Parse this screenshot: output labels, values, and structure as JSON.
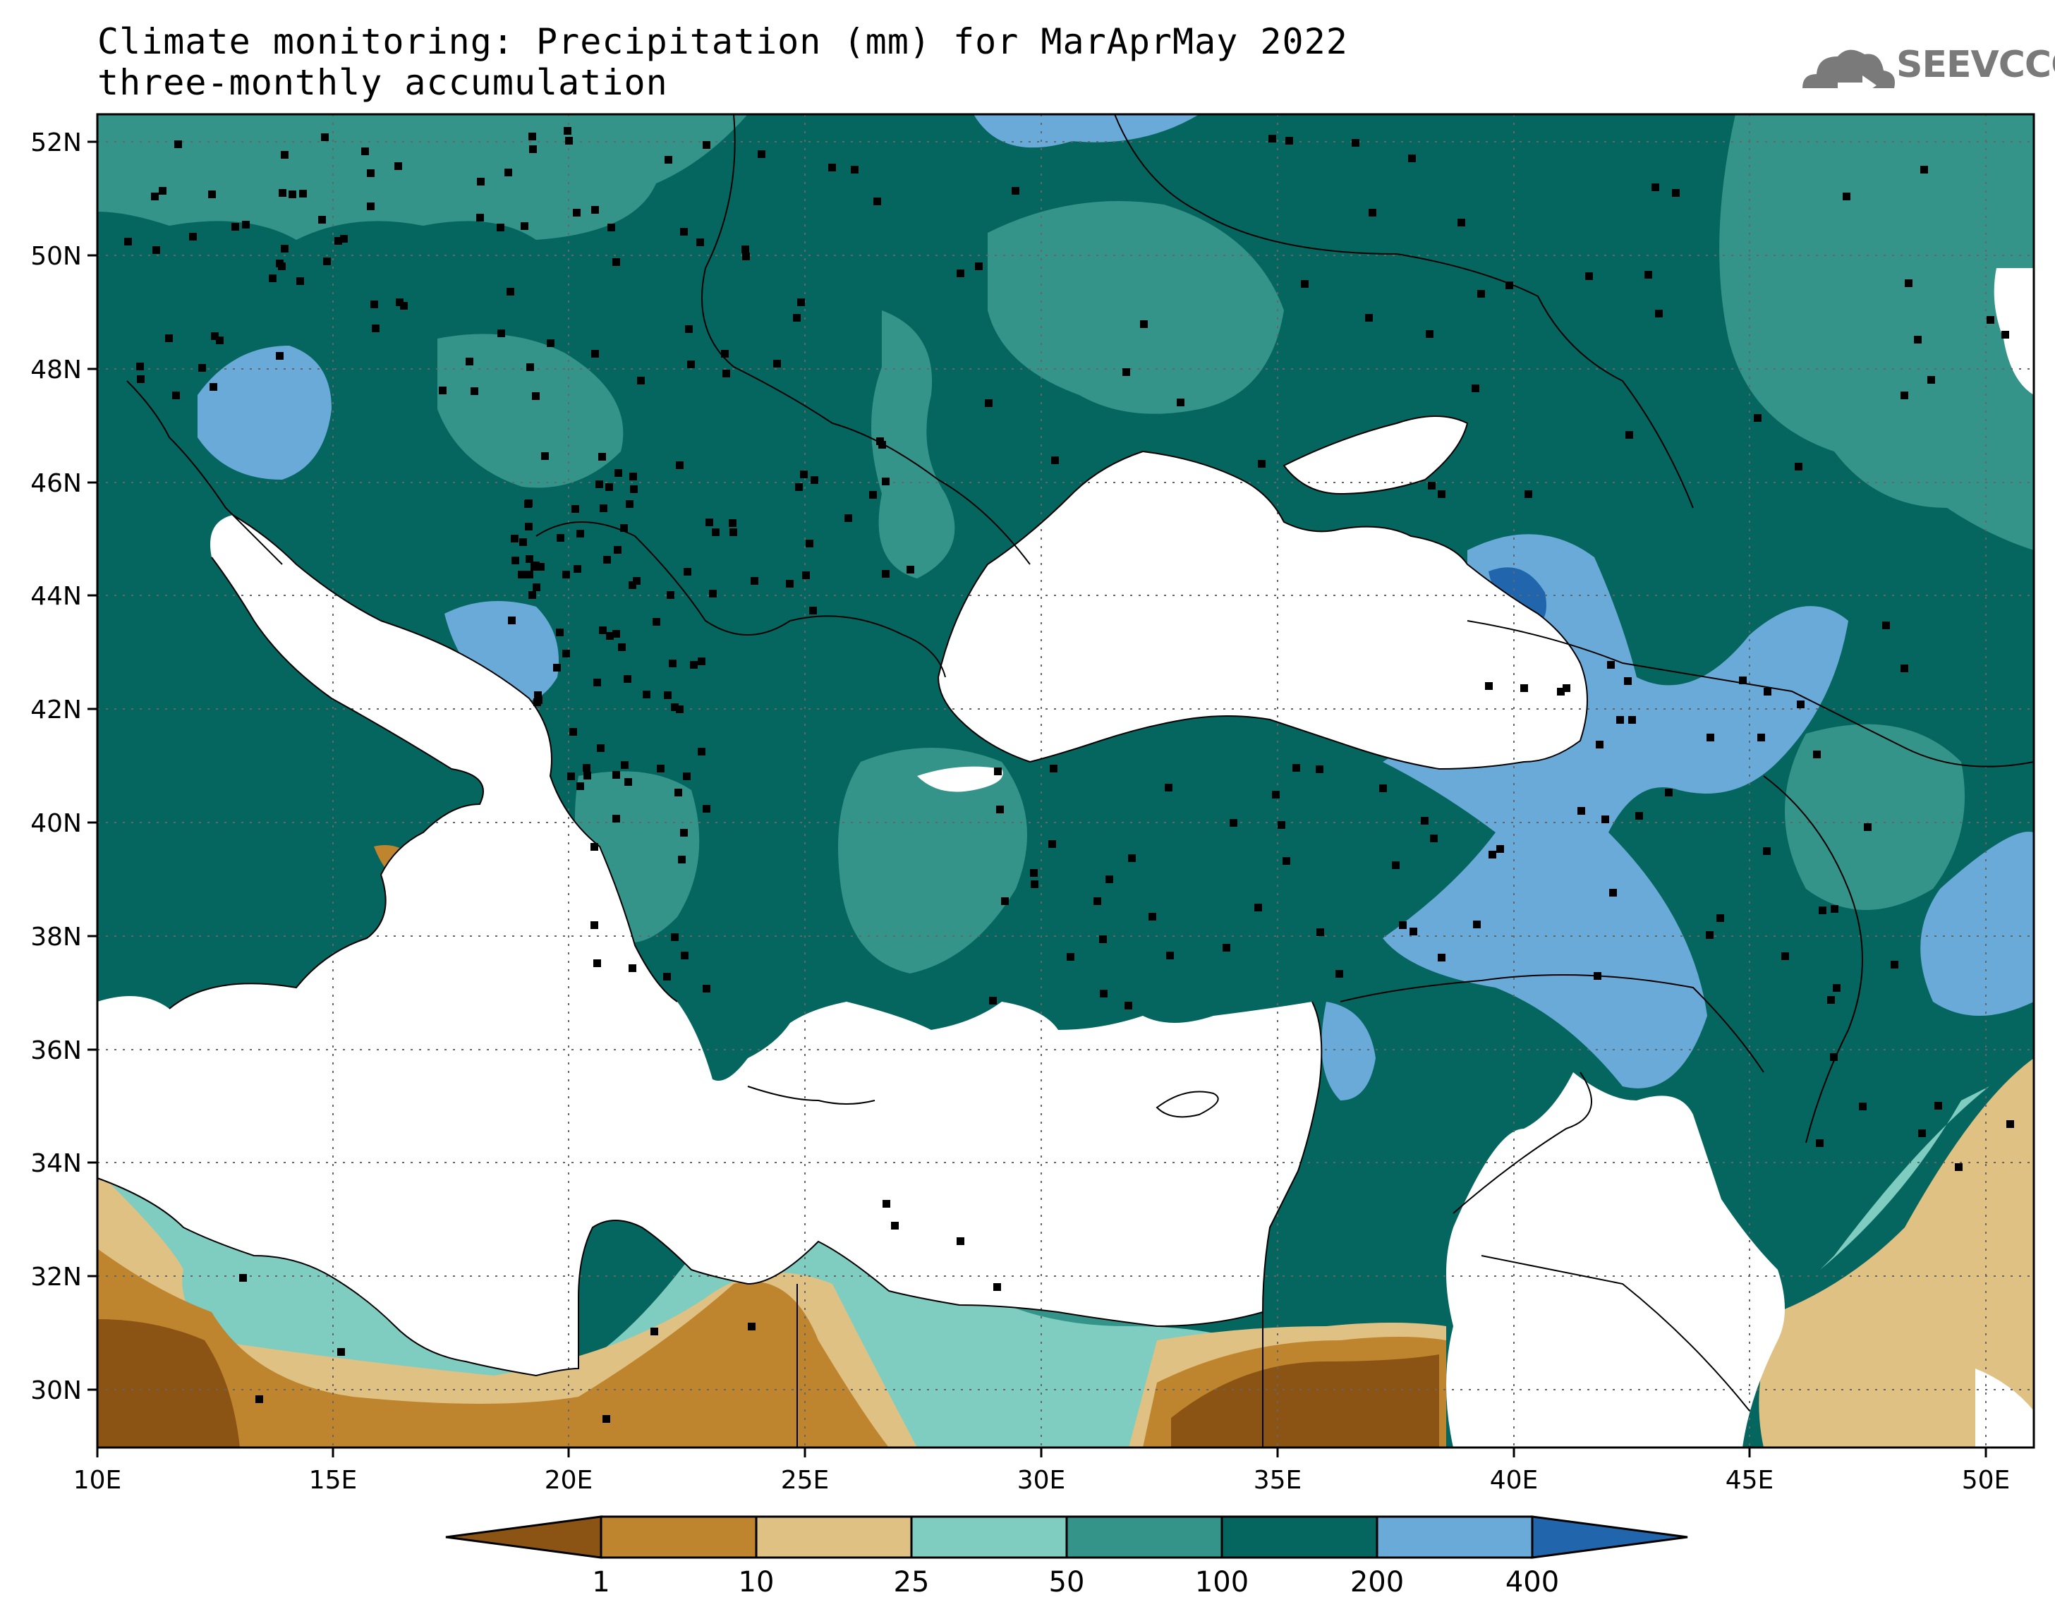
{
  "title": {
    "line1": "Climate monitoring: Precipitation (mm) for MarAprMay 2022",
    "line2": "three-monthly accumulation"
  },
  "logo": {
    "text": "SEEVCCC",
    "icon": "cloud-icon"
  },
  "map": {
    "projection": "lat-lon",
    "lon_range": [
      10,
      51
    ],
    "lat_range": [
      29,
      52.5
    ],
    "lon_ticks": [
      "10E",
      "15E",
      "20E",
      "25E",
      "30E",
      "35E",
      "40E",
      "45E",
      "50E"
    ],
    "lat_ticks": [
      "30N",
      "32N",
      "34N",
      "36N",
      "38N",
      "40N",
      "42N",
      "44N",
      "46N",
      "48N",
      "50N",
      "52N"
    ],
    "grid": "dotted",
    "stations": "black-square-markers"
  },
  "legend": {
    "thresholds": [
      "1",
      "10",
      "25",
      "50",
      "100",
      "200",
      "400"
    ],
    "colors": [
      "#8b5414",
      "#bf842e",
      "#dfc183",
      "#7ecdc0",
      "#35948a",
      "#04665e",
      "#6aaad8",
      "#2166ac"
    ],
    "extend": "both"
  },
  "colors": {
    "land_bg": "#04665e",
    "sea": "#ffffff"
  }
}
